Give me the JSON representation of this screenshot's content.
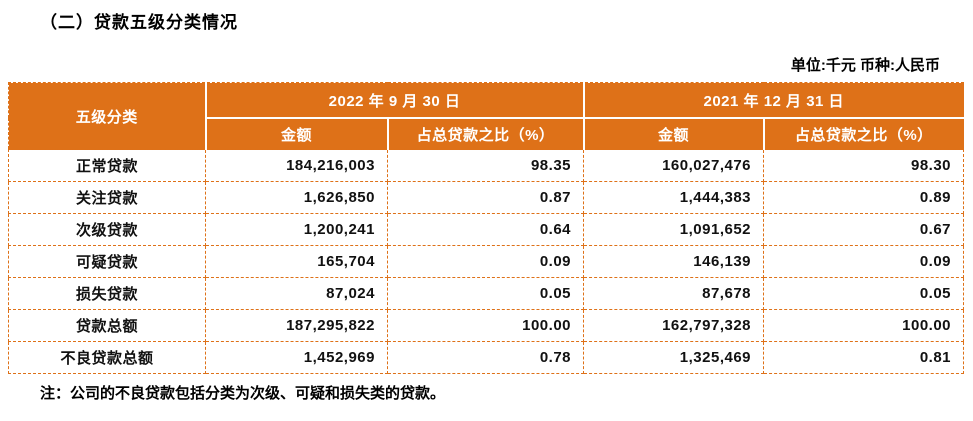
{
  "page": {
    "title": "（二）贷款五级分类情况",
    "unit_note": "单位:千元  币种:人民币",
    "footnote": "注：公司的不良贷款包括分类为次级、可疑和损失类的贷款。"
  },
  "colors": {
    "accent_orange": "#DE7118",
    "header_text": "#FFFFFF",
    "body_text": "#111111"
  },
  "table": {
    "corner_header": "五级分类",
    "col_groups": [
      {
        "label": "2022 年 9 月 30 日",
        "sub": [
          "金额",
          "占总贷款之比（%）"
        ]
      },
      {
        "label": "2021 年 12 月 31 日",
        "sub": [
          "金额",
          "占总贷款之比（%）"
        ]
      }
    ],
    "rows": [
      [
        "正常贷款",
        "184,216,003",
        "98.35",
        "160,027,476",
        "98.30"
      ],
      [
        "关注贷款",
        "1,626,850",
        "0.87",
        "1,444,383",
        "0.89"
      ],
      [
        "次级贷款",
        "1,200,241",
        "0.64",
        "1,091,652",
        "0.67"
      ],
      [
        "可疑贷款",
        "165,704",
        "0.09",
        "146,139",
        "0.09"
      ],
      [
        "损失贷款",
        "87,024",
        "0.05",
        "87,678",
        "0.05"
      ],
      [
        "贷款总额",
        "187,295,822",
        "100.00",
        "162,797,328",
        "100.00"
      ],
      [
        "不良贷款总额",
        "1,452,969",
        "0.78",
        "1,325,469",
        "0.81"
      ]
    ]
  }
}
